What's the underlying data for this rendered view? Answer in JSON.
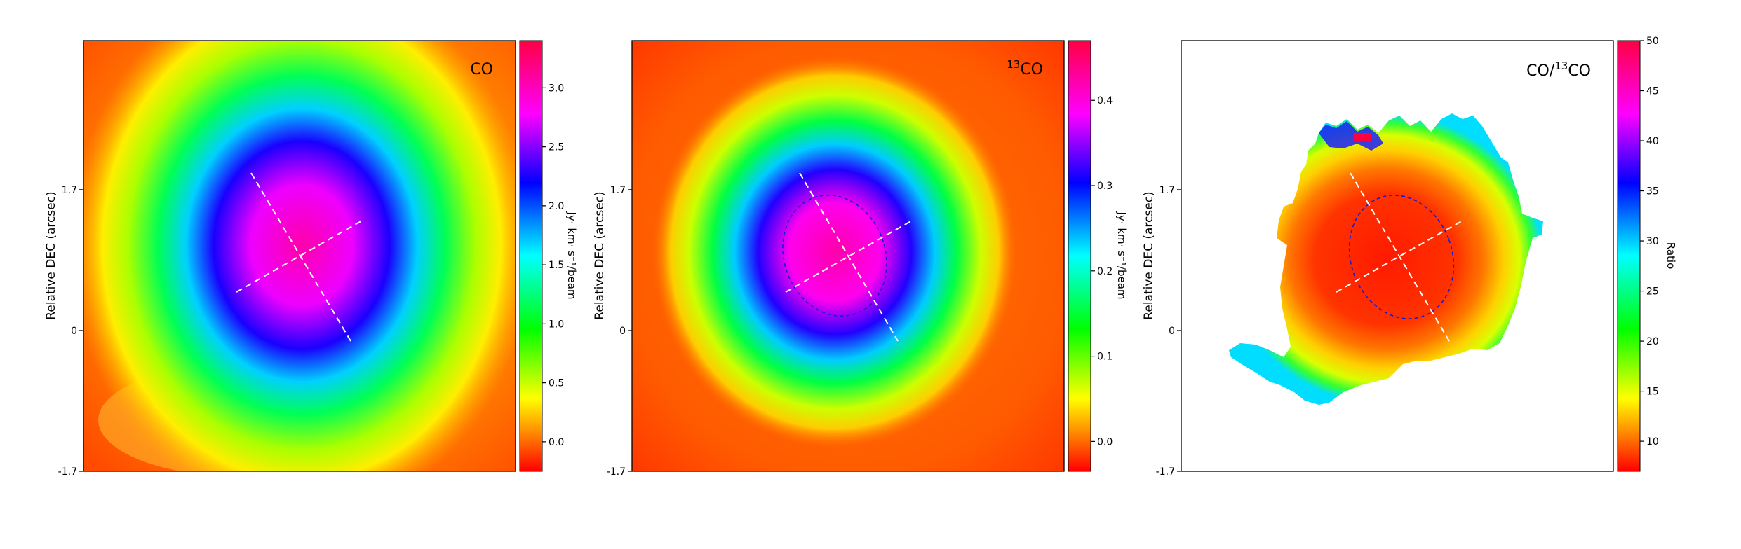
{
  "chart_data": [
    {
      "type": "heatmap",
      "title": "CO",
      "panel_label": "CO",
      "ylabel": "Relative DEC (arcsec)",
      "ytick_labels": [
        "1.7",
        "0",
        "-1.7"
      ],
      "yticks": [
        1.7,
        0,
        -1.7
      ],
      "ylim": [
        -1.7,
        3.5
      ],
      "colorbar_label": "Jy· km· s⁻¹/beam",
      "colorbar_range": [
        -0.25,
        3.4
      ],
      "colorbar_ticks": [
        -0.0,
        0.5,
        1.0,
        1.5,
        2.0,
        2.5,
        3.0
      ],
      "colorbar_tick_labels": [
        "0.0",
        "0.5",
        "1.0",
        "1.5",
        "2.0",
        "2.5",
        "3.0"
      ],
      "colormap": "hsv",
      "peak_value": 3.3,
      "background_value": 0.1,
      "beam_ellipse": false
    },
    {
      "type": "heatmap",
      "title": "13CO",
      "panel_label_sup": "13",
      "panel_label_main": "CO",
      "ylabel": "Relative DEC (arcsec)",
      "ytick_labels": [
        "1.7",
        "0",
        "-1.7"
      ],
      "yticks": [
        1.7,
        0,
        -1.7
      ],
      "ylim": [
        -1.7,
        3.5
      ],
      "colorbar_label": "Jy· km· s⁻¹/beam",
      "colorbar_range": [
        -0.035,
        0.47
      ],
      "colorbar_ticks": [
        0.0,
        0.1,
        0.2,
        0.3,
        0.4
      ],
      "colorbar_tick_labels": [
        "0.0",
        "0.1",
        "0.2",
        "0.3",
        "0.4"
      ],
      "colormap": "hsv",
      "peak_value": 0.46,
      "background_value": 0.0,
      "beam_ellipse": true
    },
    {
      "type": "heatmap",
      "title": "CO/13CO",
      "panel_label_pre": "CO/",
      "panel_label_sup": "13",
      "panel_label_main": "CO",
      "ylabel": "Relative DEC (arcsec)",
      "ytick_labels": [
        "1.7",
        "0",
        "-1.7"
      ],
      "yticks": [
        1.7,
        0,
        -1.7
      ],
      "ylim": [
        -1.7,
        3.5
      ],
      "colorbar_label": "Ratio",
      "colorbar_range": [
        7,
        50
      ],
      "colorbar_ticks": [
        10,
        15,
        20,
        25,
        30,
        35,
        40,
        45,
        50
      ],
      "colorbar_tick_labels": [
        "10",
        "15",
        "20",
        "25",
        "30",
        "35",
        "40",
        "45",
        "50"
      ],
      "colormap": "hsv",
      "center_value": 8,
      "edge_value": 22,
      "beam_ellipse": true,
      "masked_outside_region": true
    }
  ],
  "colors": {
    "dashed_axes": "#ffffff",
    "beam_outline": "#1a1acc",
    "frame": "#000000"
  }
}
